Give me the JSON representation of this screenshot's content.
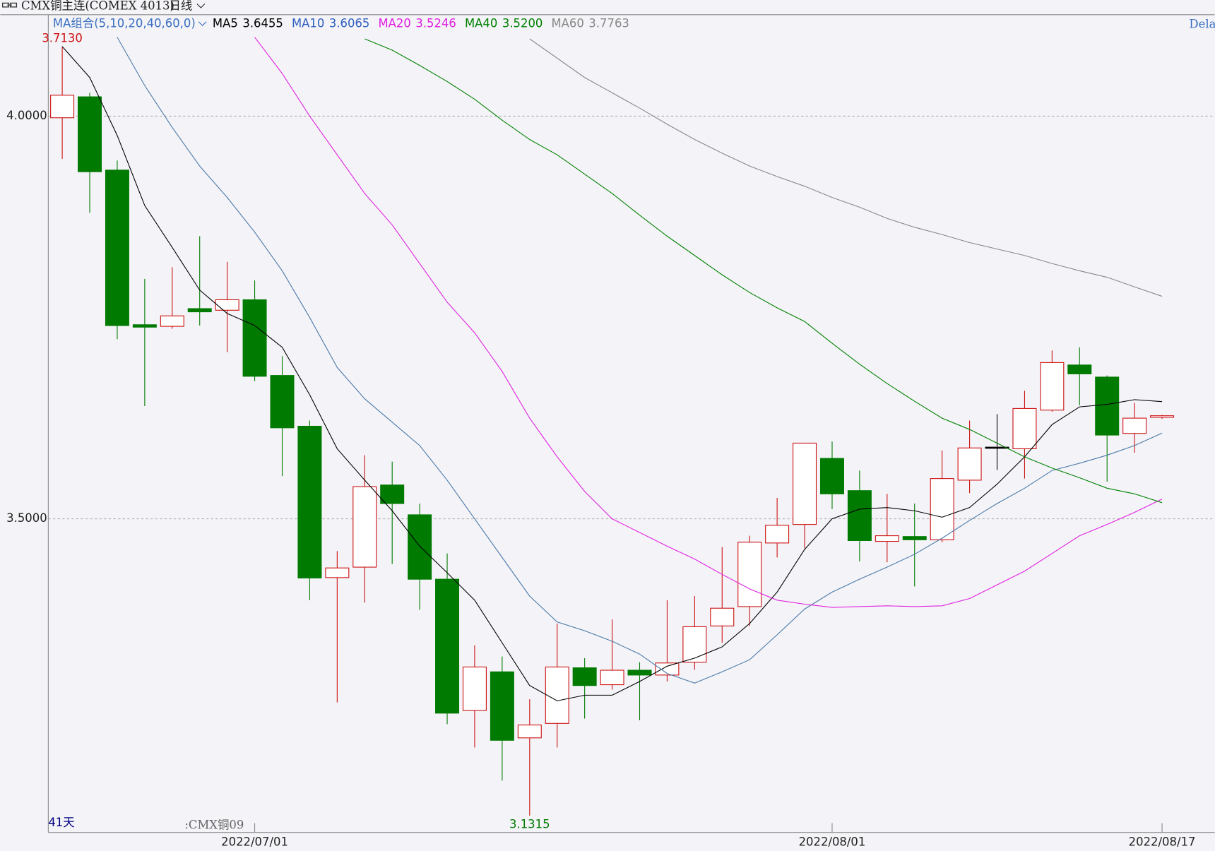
{
  "header": {
    "symbol": "CMX铜主连(COMEX 4013)",
    "period": "日线",
    "ma_group": "MA组合(5,10,20,40,60,0)",
    "right_text": "Dela",
    "bar_count": "41天",
    "contract": ":CMX铜09"
  },
  "chart_data": {
    "type": "candlestick",
    "categories": [
      null,
      null,
      null,
      null,
      null,
      null,
      null,
      "2022/07/01",
      null,
      null,
      null,
      null,
      null,
      null,
      null,
      null,
      null,
      null,
      null,
      null,
      null,
      null,
      null,
      null,
      null,
      null,
      null,
      null,
      "2022/08/01",
      null,
      null,
      null,
      null,
      null,
      null,
      null,
      null,
      null,
      null,
      null,
      "2022/08/17"
    ],
    "open": [
      3.998,
      4.024,
      3.933,
      3.741,
      3.739,
      3.761,
      3.759,
      3.772,
      3.678,
      3.615,
      3.427,
      3.44,
      3.542,
      3.505,
      3.425,
      3.262,
      3.31,
      3.228,
      3.246,
      3.315,
      3.294,
      3.312,
      3.306,
      3.322,
      3.367,
      3.391,
      3.47,
      3.493,
      3.575,
      3.535,
      3.472,
      3.478,
      3.474,
      3.548,
      3.589,
      3.587,
      3.635,
      3.691,
      3.676,
      3.606,
      3.626
    ],
    "high": [
      4.0865,
      4.029,
      3.945,
      3.798,
      3.8125,
      3.851,
      3.819,
      3.796,
      3.702,
      3.622,
      3.46,
      3.579,
      3.571,
      3.519,
      3.457,
      3.343,
      3.329,
      3.276,
      3.37,
      3.327,
      3.375,
      3.322,
      3.399,
      3.404,
      3.465,
      3.479,
      3.526,
      3.594,
      3.596,
      3.56,
      3.531,
      3.519,
      3.585,
      3.622,
      3.63,
      3.659,
      3.709,
      3.713,
      3.678,
      3.644,
      3.629
    ],
    "low": [
      3.947,
      3.88,
      3.723,
      3.64,
      3.736,
      3.74,
      3.707,
      3.671,
      3.553,
      3.399,
      3.272,
      3.396,
      3.444,
      3.387,
      3.245,
      3.216,
      3.175,
      3.1315,
      3.216,
      3.252,
      3.288,
      3.25,
      3.298,
      3.3125,
      3.346,
      3.367,
      3.452,
      3.4635,
      3.512,
      3.447,
      3.446,
      3.416,
      3.471,
      3.532,
      3.5606,
      3.55,
      3.633,
      3.641,
      3.546,
      3.582,
      3.624
    ],
    "close": [
      4.026,
      3.931,
      3.74,
      3.738,
      3.752,
      3.757,
      3.772,
      3.677,
      3.613,
      3.4265,
      3.439,
      3.54,
      3.519,
      3.425,
      3.2587,
      3.316,
      3.225,
      3.244,
      3.316,
      3.293,
      3.312,
      3.306,
      3.321,
      3.366,
      3.389,
      3.471,
      3.492,
      3.594,
      3.531,
      3.473,
      3.479,
      3.474,
      3.55,
      3.588,
      3.589,
      3.637,
      3.694,
      3.68,
      3.604,
      3.625,
      3.628
    ],
    "up_color": "#cc1010",
    "down_color": "#007a00",
    "flat_color": "#000000",
    "max_label": "3.7130",
    "min_label": "3.1315",
    "series": [
      {
        "name": "MA5",
        "color": "#000000",
        "last": {
          "value": 3.6455,
          "label": "3.6455"
        },
        "values": [
          4.0865,
          4.048,
          3.976,
          3.889,
          3.837,
          3.784,
          3.755,
          3.74,
          3.713,
          3.654,
          3.587,
          3.548,
          3.51,
          3.466,
          3.433,
          3.399,
          3.346,
          3.293,
          3.274,
          3.281,
          3.281,
          3.298,
          3.317,
          3.327,
          3.341,
          3.37,
          3.409,
          3.462,
          3.5,
          3.512,
          3.514,
          3.51,
          3.502,
          3.514,
          3.543,
          3.577,
          3.617,
          3.639,
          3.642,
          3.648,
          3.6455
        ]
      },
      {
        "name": "MA10",
        "color": "#4a78a8",
        "last": {
          "value": 3.6065,
          "label": "3.6065"
        },
        "values": [
          null,
          null,
          4.098,
          4.038,
          3.986,
          3.938,
          3.899,
          3.856,
          3.808,
          3.75,
          3.688,
          3.649,
          3.62,
          3.591,
          3.548,
          3.5,
          3.452,
          3.404,
          3.372,
          3.361,
          3.348,
          3.332,
          3.308,
          3.296,
          3.31,
          3.325,
          3.356,
          3.388,
          3.409,
          3.425,
          3.44,
          3.456,
          3.476,
          3.498,
          3.519,
          3.538,
          3.56,
          3.569,
          3.579,
          3.591,
          3.6065
        ]
      },
      {
        "name": "MA20",
        "color": "#e020e0",
        "last": {
          "value": 3.5246,
          "label": "3.5246"
        },
        "values": [
          null,
          null,
          null,
          null,
          null,
          null,
          null,
          4.098,
          4.053,
          4.0,
          3.952,
          3.904,
          3.865,
          3.817,
          3.769,
          3.731,
          3.683,
          3.625,
          3.577,
          3.534,
          3.5,
          3.483,
          3.466,
          3.45,
          3.431,
          3.413,
          3.399,
          3.394,
          3.39,
          3.391,
          3.392,
          3.391,
          3.392,
          3.401,
          3.418,
          3.435,
          3.457,
          3.479,
          3.493,
          3.508,
          3.5246
        ]
      },
      {
        "name": "MA40",
        "color": "#008000",
        "last": {
          "value": 3.52,
          "label": "3.5200"
        },
        "values": [
          null,
          null,
          null,
          null,
          null,
          null,
          null,
          null,
          null,
          null,
          null,
          4.096,
          4.082,
          4.063,
          4.043,
          4.021,
          3.995,
          3.971,
          3.952,
          3.928,
          3.904,
          3.877,
          3.851,
          3.827,
          3.803,
          3.781,
          3.762,
          3.745,
          3.718,
          3.692,
          3.668,
          3.646,
          3.625,
          3.611,
          3.594,
          3.577,
          3.563,
          3.551,
          3.538,
          3.531,
          3.52
        ]
      },
      {
        "name": "MA60",
        "color": "#888888",
        "last": {
          "value": 3.7763,
          "label": "3.7763"
        },
        "values": [
          null,
          null,
          null,
          null,
          null,
          null,
          null,
          null,
          null,
          null,
          null,
          null,
          null,
          null,
          null,
          null,
          null,
          4.096,
          4.072,
          4.048,
          4.029,
          4.01,
          3.99,
          3.971,
          3.954,
          3.938,
          3.925,
          3.913,
          3.899,
          3.887,
          3.873,
          3.862,
          3.853,
          3.843,
          3.835,
          3.827,
          3.817,
          3.808,
          3.8,
          3.788,
          3.7763
        ]
      }
    ],
    "ylim": [
      3.1106,
      4.125
    ],
    "yticks": [
      {
        "value": 4.0,
        "label": "4.0000"
      },
      {
        "value": 3.5,
        "label": "3.5000"
      }
    ],
    "grid": true
  }
}
